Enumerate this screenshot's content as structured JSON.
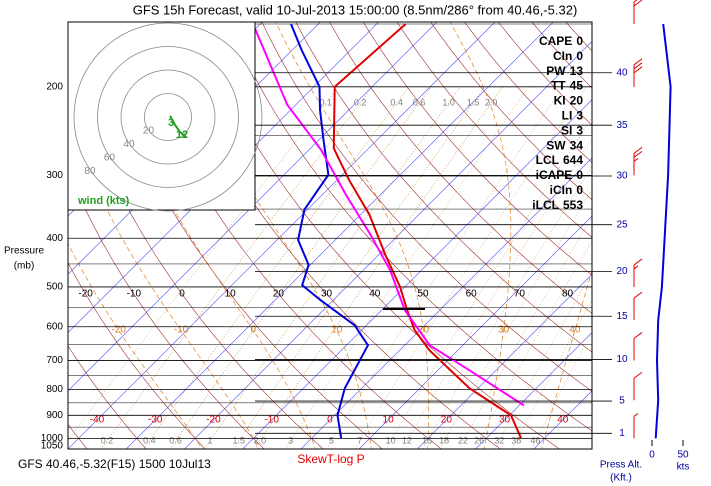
{
  "chart_data": {
    "type": "skew-t",
    "title": "GFS 15h Forecast, valid 10-Jul-2013 15:00:00 (8.5nm/286° from 40.46,-5.32)",
    "subtitle": "GFS 40.46,-5.32(F15) 1500 10Jul13",
    "xlabel": "SkewT-log P",
    "ylabel": "Pressure",
    "ylabel_unit": "(mb)",
    "ylim": [
      1050,
      150
    ],
    "yticks": [
      1050,
      1000,
      900,
      800,
      700,
      600,
      500,
      400,
      300,
      200
    ],
    "xlim": [
      -40,
      50
    ],
    "xticks": [
      -40,
      -30,
      -20,
      -10,
      0,
      10,
      20,
      30,
      40
    ],
    "theta_ticks": [
      -20,
      -10,
      0,
      10,
      20,
      30,
      40,
      50,
      60,
      70,
      80
    ],
    "theta_w_ticks": [
      -20,
      -10,
      0,
      10,
      20,
      30,
      40
    ],
    "mixing_ratio_ticks_top": [
      0.1,
      0.2,
      0.4,
      0.6,
      {
        "value": 1,
        "label": "1.0"
      },
      1.5,
      {
        "value": 2,
        "label": "2.0"
      }
    ],
    "mixing_ratio_ticks_bottom": [
      0.2,
      0.4,
      0.6,
      1,
      1.5,
      {
        "value": 2,
        "label": "2.0"
      },
      3,
      5,
      7,
      10,
      12,
      15,
      18,
      22,
      26,
      32,
      38,
      46
    ],
    "profiles": [
      {
        "color": "#e00000",
        "pressure": [
          1000,
          900,
          795,
          668,
          609,
          556,
          500,
          432,
          359,
          306,
          265,
          200,
          150
        ],
        "values": [
          36,
          30.3,
          18.5,
          5.1,
          -0.9,
          -5.6,
          -10.8,
          -18.8,
          -28.5,
          -38,
          -46,
          -56.4,
          -55
        ]
      },
      {
        "color": "#0000e0",
        "pressure": [
          1000,
          900,
          795,
          653,
          596,
          531,
          496,
          452,
          403,
          351,
          299,
          255,
          222,
          200,
          169,
          150
        ],
        "values": [
          5.1,
          0.5,
          -2.9,
          -6.3,
          -12,
          -22.2,
          -27.9,
          -30.3,
          -36.4,
          -40.5,
          -42.4,
          -49.2,
          -55,
          -59,
          -68.4,
          -74.7
        ]
      },
      {
        "color": "#ff00ff",
        "pressure": [
          860,
          732,
          653,
          556,
          463,
          394,
          328,
          267,
          217,
          150
        ],
        "values": [
          30.8,
          15.4,
          4.3,
          -6,
          -15.4,
          -24.8,
          -35.9,
          -47.9,
          -61.5,
          -81.2
        ]
      }
    ],
    "indices": [
      {
        "label": "CAPE",
        "value": 0
      },
      {
        "label": "CIn",
        "value": 0
      },
      {
        "label": "PW",
        "value": 13
      },
      {
        "label": "TT",
        "value": 45
      },
      {
        "label": "KI",
        "value": 20
      },
      {
        "label": "LI",
        "value": 3
      },
      {
        "label": "SI",
        "value": 3
      },
      {
        "label": "SW",
        "value": 34
      },
      {
        "label": "LCL",
        "value": 644
      },
      {
        "label": "iCAPE",
        "value": 0
      },
      {
        "label": "iCIn",
        "value": 0
      },
      {
        "label": "iLCL",
        "value": 553
      }
    ],
    "height_label": "Press Alt.",
    "height_unit": "(Kft.)",
    "height_ticks": [
      1,
      5,
      10,
      15,
      20,
      25,
      30,
      35,
      40
    ],
    "wind": {
      "color": "#0000e0",
      "barb_color": "#e00000",
      "pressure": [
        150,
        200,
        300,
        500,
        582,
        700,
        840,
        1000
      ],
      "speed": [
        18,
        30,
        26,
        16,
        10,
        8,
        10,
        6
      ],
      "xlim": [
        0,
        50
      ],
      "xticks": [
        0,
        50
      ],
      "unit": "kts"
    },
    "hodograph": {
      "label": "wind (kts)",
      "rings": [
        20,
        40,
        60,
        80
      ],
      "color": "#20a020",
      "u": [
        1.7,
        6,
        10.2,
        15.3
      ],
      "v": [
        0.9,
        -6.8,
        -12.8,
        -17
      ],
      "point_labels": [
        "3",
        "12"
      ]
    }
  }
}
